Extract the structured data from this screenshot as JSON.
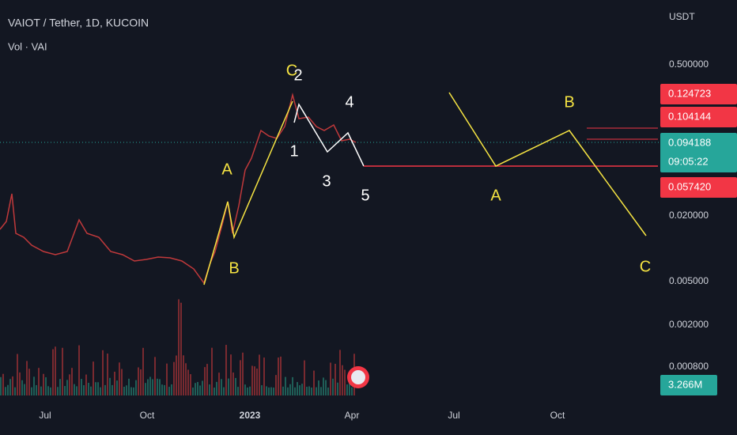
{
  "header": {
    "symbol": "VAIOT / Tether, 1D, KUCOIN",
    "indicator": "Vol · VAI"
  },
  "price_axis": {
    "currency": "USDT",
    "labels": [
      "0.500000",
      "0.020000",
      "0.005000",
      "0.002000",
      "0.000800"
    ]
  },
  "time_axis": {
    "labels": [
      "Jul",
      "Oct",
      "2023",
      "Apr",
      "Jul",
      "Oct"
    ]
  },
  "tags": {
    "high": "0.124723",
    "mid": "0.104144",
    "last": "0.094188",
    "countdown": "09:05:22",
    "low": "0.057420",
    "volume": "3.266M"
  },
  "waves": {
    "left_a": "A",
    "left_b": "B",
    "left_c": "C",
    "w1": "1",
    "w2": "2",
    "w3": "3",
    "w4": "4",
    "w5": "5",
    "right_a": "A",
    "right_b": "B",
    "right_c": "C"
  }
}
